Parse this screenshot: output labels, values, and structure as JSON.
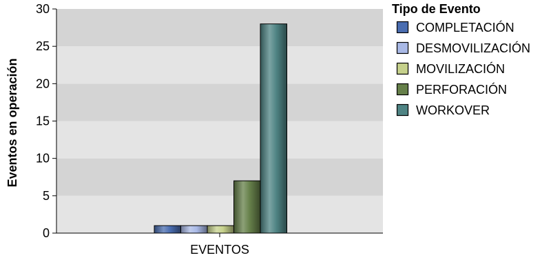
{
  "chart_data": {
    "type": "bar",
    "categories": [
      "EVENTOS"
    ],
    "ylabel": "Eventos en operación",
    "xlabel": "",
    "ylim": [
      0,
      30
    ],
    "yticks": [
      0,
      5,
      10,
      15,
      20,
      25,
      30
    ],
    "grid": "alternating horizontal bands",
    "legend_position": "right",
    "legend_title": "Tipo de Evento",
    "series": [
      {
        "name": "COMPLETACIÓN",
        "values": [
          1
        ],
        "color": "#4a6db0"
      },
      {
        "name": "DESMOVILIZACIÓN",
        "values": [
          1
        ],
        "color": "#a9b9e6"
      },
      {
        "name": "MOVILIZACIÓN",
        "values": [
          1
        ],
        "color": "#c6d18c"
      },
      {
        "name": "PERFORACIÓN",
        "values": [
          7
        ],
        "color": "#66804a"
      },
      {
        "name": "WORKOVER",
        "values": [
          28
        ],
        "color": "#4f8484"
      }
    ]
  }
}
